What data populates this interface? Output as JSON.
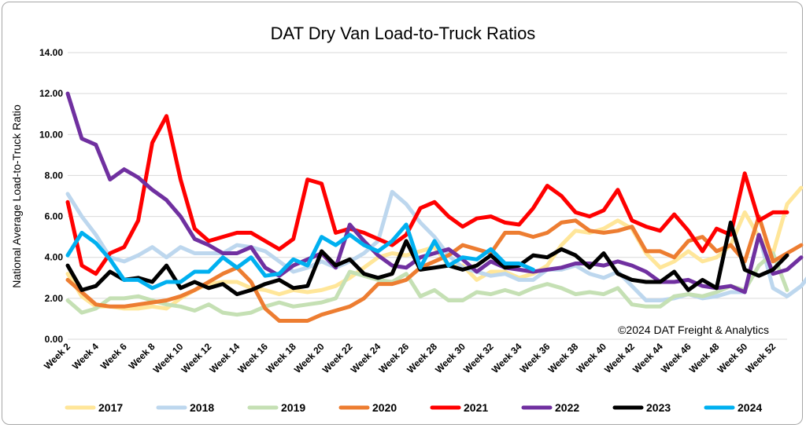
{
  "chart_data": {
    "type": "line",
    "title": "DAT Dry Van Load-to-Truck Ratios",
    "ylabel": "National Average Load-to-Truck Ratio",
    "xlabel": "",
    "annotation": "©2024 DAT Freight & Analytics",
    "ylim": [
      0,
      14
    ],
    "y_ticks": [
      "0.00",
      "2.00",
      "4.00",
      "6.00",
      "8.00",
      "10.00",
      "12.00",
      "14.00"
    ],
    "x_tick_labels": [
      "Week 2",
      "Week 4",
      "Week 6",
      "Week 8",
      "Week 10",
      "Week 12",
      "Week 14",
      "Week 16",
      "Week 18",
      "Week 20",
      "Week 22",
      "Week 24",
      "Week 26",
      "Week 28",
      "Week 30",
      "Week 32",
      "Week 34",
      "Week 36",
      "Week 38",
      "Week 40",
      "Week 42",
      "Week 44",
      "Week 46",
      "Week 48",
      "Week 50",
      "Week 52"
    ],
    "x_start_week": 2,
    "x_end_week": 53,
    "grid": "horizontal",
    "legend": "bottom",
    "series": [
      {
        "name": "2017",
        "color": "#ffe699",
        "values": [
          3.2,
          2.1,
          1.6,
          1.6,
          1.5,
          1.5,
          1.6,
          1.5,
          2.0,
          2.4,
          2.7,
          2.8,
          2.8,
          2.5,
          2.4,
          2.2,
          2.4,
          2.3,
          2.4,
          2.6,
          3.0,
          3.5,
          4.0,
          4.2,
          4.1,
          4.3,
          4.5,
          3.6,
          3.6,
          2.9,
          3.3,
          3.3,
          3.0,
          3.2,
          3.6,
          4.6,
          5.3,
          5.2,
          5.4,
          5.8,
          5.4,
          4.2,
          3.5,
          3.8,
          4.3,
          3.8,
          4.0,
          4.6,
          6.2,
          5.0,
          4.2,
          6.6,
          7.4
        ]
      },
      {
        "name": "2018",
        "color": "#bdd7ee",
        "values": [
          7.1,
          6.0,
          5.1,
          4.0,
          3.8,
          4.1,
          4.5,
          4.0,
          4.5,
          4.2,
          4.2,
          4.2,
          4.6,
          4.5,
          4.3,
          3.8,
          3.3,
          3.5,
          3.8,
          3.5,
          3.8,
          4.2,
          4.8,
          7.2,
          6.6,
          5.7,
          5.0,
          4.1,
          3.5,
          3.3,
          3.1,
          3.2,
          2.9,
          2.9,
          3.4,
          3.4,
          3.6,
          3.2,
          3.0,
          3.3,
          2.6,
          1.9,
          1.9,
          2.0,
          2.2,
          2.0,
          2.1,
          2.3,
          2.3,
          5.1,
          2.5,
          2.1,
          2.6,
          3.5
        ]
      },
      {
        "name": "2019",
        "color": "#c5e0b4",
        "values": [
          1.9,
          1.3,
          1.5,
          2.0,
          2.0,
          2.1,
          1.9,
          1.7,
          1.6,
          1.4,
          1.7,
          1.3,
          1.2,
          1.3,
          1.6,
          1.8,
          1.6,
          1.7,
          1.8,
          2.0,
          3.3,
          3.1,
          2.9,
          2.8,
          3.2,
          2.1,
          2.4,
          1.9,
          1.9,
          2.3,
          2.2,
          2.4,
          2.2,
          2.5,
          2.7,
          2.5,
          2.2,
          2.3,
          2.2,
          2.5,
          1.7,
          1.6,
          1.6,
          2.1,
          2.2,
          2.1,
          2.3,
          2.6,
          2.4,
          3.6,
          4.2,
          2.4
        ]
      },
      {
        "name": "2020",
        "color": "#ed7d31",
        "values": [
          2.9,
          2.3,
          1.7,
          1.6,
          1.6,
          1.7,
          1.8,
          1.9,
          2.1,
          2.4,
          2.8,
          3.2,
          3.5,
          2.8,
          1.5,
          0.9,
          0.9,
          0.9,
          1.2,
          1.4,
          1.6,
          2.0,
          2.7,
          2.7,
          2.9,
          3.5,
          3.8,
          4.1,
          4.6,
          4.4,
          4.2,
          5.2,
          5.2,
          5.0,
          5.2,
          5.7,
          5.8,
          5.3,
          5.2,
          5.3,
          5.5,
          4.3,
          4.3,
          4.0,
          4.8,
          5.0,
          4.3,
          4.6,
          3.8,
          6.0,
          3.8,
          4.2,
          4.6
        ]
      },
      {
        "name": "2021",
        "color": "#ff0000",
        "values": [
          6.7,
          3.6,
          3.2,
          4.2,
          4.5,
          5.8,
          9.6,
          10.9,
          7.8,
          5.4,
          4.8,
          5.0,
          5.2,
          5.2,
          4.8,
          4.4,
          4.9,
          7.8,
          7.6,
          5.2,
          5.4,
          5.2,
          4.9,
          4.6,
          5.1,
          6.4,
          6.7,
          6.0,
          5.5,
          5.9,
          6.0,
          5.7,
          5.6,
          6.4,
          7.5,
          7.0,
          6.2,
          6.0,
          6.3,
          7.3,
          5.8,
          5.5,
          5.3,
          6.1,
          5.3,
          4.3,
          5.4,
          5.1,
          8.1,
          5.8,
          6.2,
          6.2
        ]
      },
      {
        "name": "2022",
        "color": "#7030a0",
        "values": [
          12.0,
          9.8,
          9.5,
          7.8,
          8.3,
          7.9,
          7.3,
          6.8,
          6.0,
          4.9,
          4.6,
          4.2,
          4.2,
          4.5,
          3.5,
          3.1,
          3.6,
          3.9,
          4.2,
          3.5,
          5.6,
          4.8,
          4.1,
          3.6,
          3.5,
          4.0,
          4.2,
          4.4,
          3.9,
          3.3,
          3.8,
          3.5,
          3.4,
          3.3,
          3.4,
          3.5,
          3.7,
          3.7,
          3.6,
          3.8,
          3.6,
          3.3,
          2.8,
          2.8,
          2.9,
          2.6,
          2.5,
          2.6,
          2.3,
          5.1,
          3.2,
          3.4,
          4.0
        ]
      },
      {
        "name": "2023",
        "color": "#000000",
        "values": [
          3.6,
          2.4,
          2.6,
          3.3,
          2.9,
          3.0,
          2.8,
          3.6,
          2.5,
          2.8,
          2.5,
          2.7,
          2.2,
          2.4,
          2.7,
          2.9,
          2.5,
          2.6,
          4.3,
          3.6,
          3.9,
          3.2,
          3.0,
          3.2,
          4.8,
          3.4,
          3.5,
          3.6,
          3.4,
          3.6,
          4.1,
          3.5,
          3.6,
          4.1,
          4.0,
          4.4,
          4.1,
          3.5,
          4.2,
          3.2,
          2.9,
          2.8,
          2.8,
          3.3,
          2.4,
          2.9,
          2.5,
          5.7,
          3.4,
          3.1,
          3.4,
          4.1
        ]
      },
      {
        "name": "2024",
        "color": "#00b0f0",
        "values": [
          4.1,
          5.2,
          4.7,
          3.9,
          2.9,
          2.9,
          2.5,
          2.8,
          2.8,
          3.3,
          3.3,
          4.0,
          3.5,
          4.0,
          3.1,
          3.2,
          3.9,
          3.6,
          5.0,
          4.6,
          5.1,
          4.6,
          4.3,
          4.8,
          5.6,
          3.5,
          4.8,
          3.6,
          4.0,
          3.9,
          4.4,
          3.7,
          3.7,
          3.4
        ]
      }
    ]
  }
}
